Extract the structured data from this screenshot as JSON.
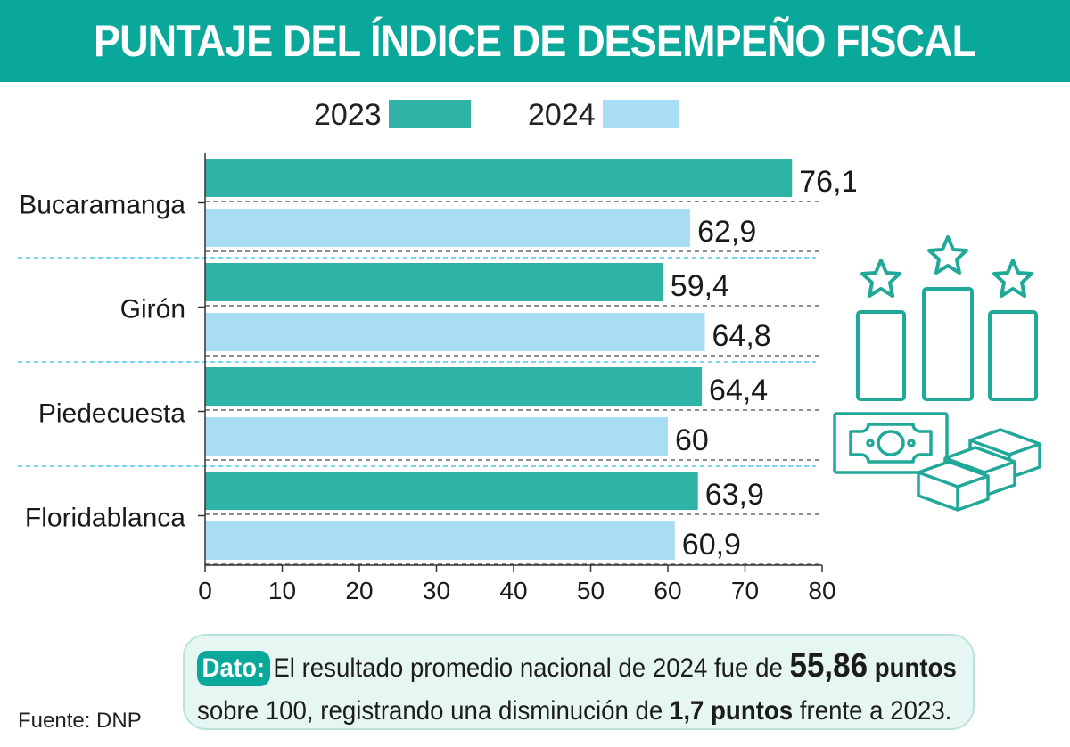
{
  "title": "PUNTAJE DEL ÍNDICE DE DESEMPEÑO FISCAL",
  "legend": {
    "items": [
      {
        "label": "2023",
        "color": "#2fb3a5"
      },
      {
        "label": "2024",
        "color": "#a9dcf5"
      }
    ]
  },
  "chart_data": {
    "type": "bar",
    "orientation": "horizontal",
    "categories": [
      "Bucaramanga",
      "Girón",
      "Piedecuesta",
      "Floridablanca"
    ],
    "series": [
      {
        "name": "2023",
        "values": [
          76.1,
          59.4,
          64.4,
          63.9
        ],
        "labels": [
          "76,1",
          "59,4",
          "64,4",
          "63,9"
        ],
        "color": "#2fb3a5"
      },
      {
        "name": "2024",
        "values": [
          62.9,
          64.8,
          60,
          60.9
        ],
        "labels": [
          "62,9",
          "64,8",
          "60",
          "60,9"
        ],
        "color": "#a9dcf5"
      }
    ],
    "xlim": [
      0,
      80
    ],
    "xticks": [
      0,
      10,
      20,
      30,
      40,
      50,
      60,
      70,
      80
    ],
    "xlabel": "",
    "ylabel": ""
  },
  "note": {
    "tag": "Dato:",
    "line1_text": "El resultado promedio nacional de 2024 fue de",
    "line1_value": "55,86",
    "line1_unit": "puntos",
    "line2_text": "sobre 100, registrando una disminución de",
    "line2_value": "1,7 puntos",
    "line2_end": "frente a 2023."
  },
  "source": "Fuente: DNP",
  "colors": {
    "title_bg": "#0aa89a",
    "bar_2023": "#2fb3a5",
    "bar_2024": "#a9dcf5",
    "separator": "#7fd3e8",
    "icon": "#20a898",
    "note_bg": "#e6f6f3"
  },
  "icons": [
    "podium-stars-icon",
    "banknote-icon",
    "money-stack-icon"
  ]
}
